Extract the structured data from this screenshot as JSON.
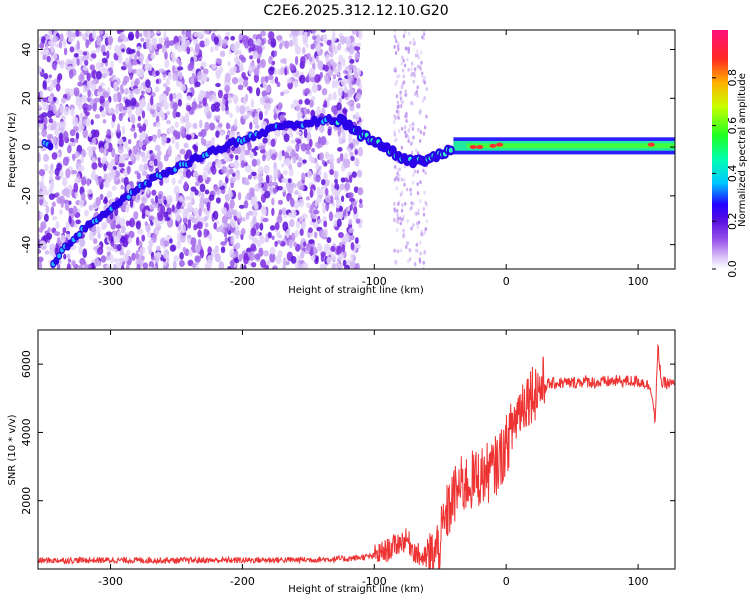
{
  "page_title": "C2E6.2025.312.12.10.G20",
  "chart_data": [
    {
      "type": "heatmap",
      "title": "C2E6.2025.312.12.10.G20",
      "xlabel": "Height of straight line (km)",
      "ylabel": "Frequency (Hz)",
      "xlim": [
        -355,
        128
      ],
      "ylim": [
        -50,
        48
      ],
      "x_ticks": [
        -300,
        -200,
        -100,
        0,
        100
      ],
      "x_tick_labels": [
        "-300",
        "-200",
        "-100",
        "0",
        "100"
      ],
      "y_ticks": [
        -40,
        -20,
        0,
        20,
        40
      ],
      "y_tick_labels": [
        "-40",
        "-20",
        "0",
        "20",
        "40"
      ],
      "colorbar": {
        "label": "Normalized spectral amplitude",
        "range": [
          0,
          1
        ],
        "ticks": [
          0.0,
          0.2,
          0.4,
          0.6,
          0.8
        ],
        "tick_labels": [
          "0.0",
          "0.2",
          "0.4",
          "0.6",
          "0.8"
        ],
        "colors": [
          "#ffffff",
          "#c9a6f5",
          "#7a1fe0",
          "#2c00ff",
          "#00e0ff",
          "#00ff60",
          "#c8ff00",
          "#ff9900",
          "#ff2040",
          "#ff1080"
        ]
      },
      "ridge": {
        "description_points": [
          [
            -345,
            -48
          ],
          [
            -320,
            -33
          ],
          [
            -300,
            -26
          ],
          [
            -280,
            -17
          ],
          [
            -260,
            -11
          ],
          [
            -240,
            -6
          ],
          [
            -220,
            -1
          ],
          [
            -200,
            3
          ],
          [
            -180,
            7
          ],
          [
            -160,
            9
          ],
          [
            -140,
            11
          ],
          [
            -125,
            11
          ],
          [
            -110,
            5
          ],
          [
            -100,
            3
          ],
          [
            -90,
            -1
          ],
          [
            -80,
            -4
          ],
          [
            -70,
            -6
          ],
          [
            -60,
            -5
          ],
          [
            -50,
            -3
          ],
          [
            -40,
            -1
          ],
          [
            -30,
            0
          ],
          [
            -20,
            0
          ],
          [
            0,
            1
          ],
          [
            50,
            1
          ],
          [
            128,
            1
          ]
        ]
      }
    },
    {
      "type": "line",
      "xlabel": "Height of straight line (km)",
      "ylabel": "SNR (10 * v/v)",
      "xlim": [
        -355,
        128
      ],
      "ylim": [
        0,
        7000
      ],
      "x_ticks": [
        -300,
        -200,
        -100,
        0,
        100
      ],
      "x_tick_labels": [
        "-300",
        "-200",
        "-100",
        "0",
        "100"
      ],
      "y_ticks": [
        2000,
        4000,
        6000
      ],
      "y_tick_labels": [
        "2000",
        "4000",
        "6000"
      ],
      "series": [
        {
          "color": "#ee3333",
          "x": [
            -355,
            -300,
            -250,
            -200,
            -150,
            -120,
            -100,
            -90,
            -80,
            -75,
            -70,
            -65,
            -60,
            -55,
            -50,
            -45,
            -40,
            -35,
            -30,
            -25,
            -20,
            -15,
            -10,
            -5,
            0,
            5,
            10,
            15,
            20,
            25,
            30,
            40,
            50,
            60,
            70,
            80,
            90,
            100,
            105,
            110,
            113,
            115,
            118,
            120,
            128
          ],
          "y": [
            250,
            260,
            250,
            260,
            270,
            300,
            380,
            550,
            800,
            850,
            550,
            350,
            300,
            350,
            800,
            1600,
            2100,
            2400,
            2500,
            2600,
            2700,
            2800,
            2900,
            3200,
            3600,
            4200,
            4700,
            5000,
            5200,
            5300,
            5400,
            5450,
            5450,
            5500,
            5450,
            5500,
            5500,
            5500,
            5450,
            5300,
            4300,
            6500,
            5400,
            5450,
            5400
          ]
        }
      ]
    }
  ]
}
